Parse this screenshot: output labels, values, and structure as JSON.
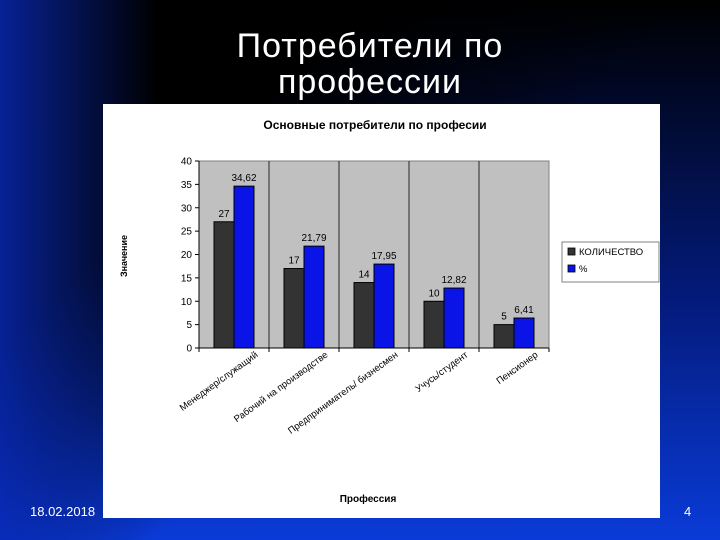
{
  "slide": {
    "title_line1": "Потребители по",
    "title_line2": "профессии",
    "date": "18.02.2018",
    "page_number": "4"
  },
  "colors": {
    "series1": "#333333",
    "series2": "#0a14e6",
    "plot_bg": "#c0c0c0"
  },
  "chart_data": {
    "type": "bar",
    "title": "Основные потребители по професии",
    "xlabel": "Профессия",
    "ylabel": "Значение",
    "ylim": [
      0,
      40
    ],
    "yticks": [
      0,
      5,
      10,
      15,
      20,
      25,
      30,
      35,
      40
    ],
    "categories": [
      "Менеджер/служащий",
      "Рабочий на производстве",
      "Предприниматель/ бизнесмен",
      "Учусь/студент",
      "Пенсионер"
    ],
    "series": [
      {
        "name": "КОЛИЧЕСТВО",
        "values": [
          27,
          17,
          14,
          10,
          5
        ],
        "labels": [
          "27",
          "17",
          "14",
          "10",
          "5"
        ]
      },
      {
        "name": "%",
        "values": [
          34.62,
          21.79,
          17.95,
          12.82,
          6.41
        ],
        "labels": [
          "34,62",
          "21,79",
          "17,95",
          "12,82",
          "6,41"
        ]
      }
    ],
    "grid": "vertical",
    "legend_position": "right"
  }
}
